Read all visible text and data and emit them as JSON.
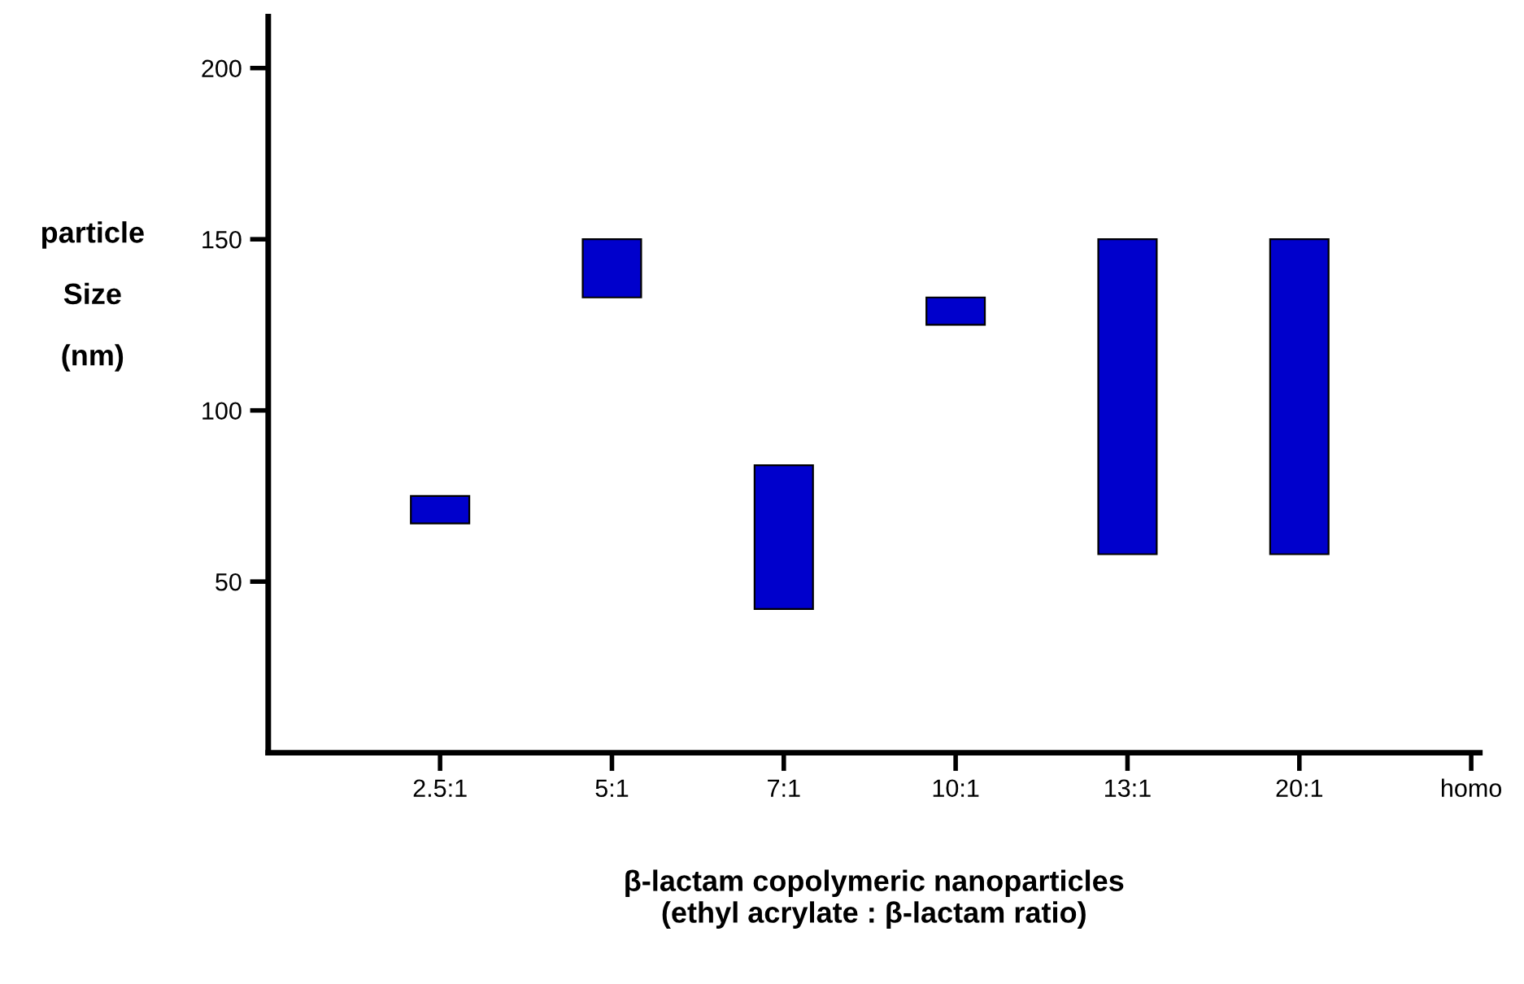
{
  "chart_data": {
    "type": "bar",
    "categories": [
      "2.5:1",
      "5:1",
      "7:1",
      "10:1",
      "13:1",
      "20:1",
      "homo"
    ],
    "base": [
      67,
      133,
      42,
      125,
      58,
      58,
      null
    ],
    "values": [
      8,
      17,
      42,
      8,
      92,
      92,
      null
    ],
    "color": "#0000cc",
    "ylabel": "particle\nSize\n(nm)",
    "xlabel": "β-lactam copolymeric nanoparticles\n(ethyl acrylate : β-lactam ratio)",
    "ylim": [
      0,
      215
    ],
    "yticks": [
      50,
      100,
      150,
      200
    ],
    "grid": false,
    "legend": false
  }
}
